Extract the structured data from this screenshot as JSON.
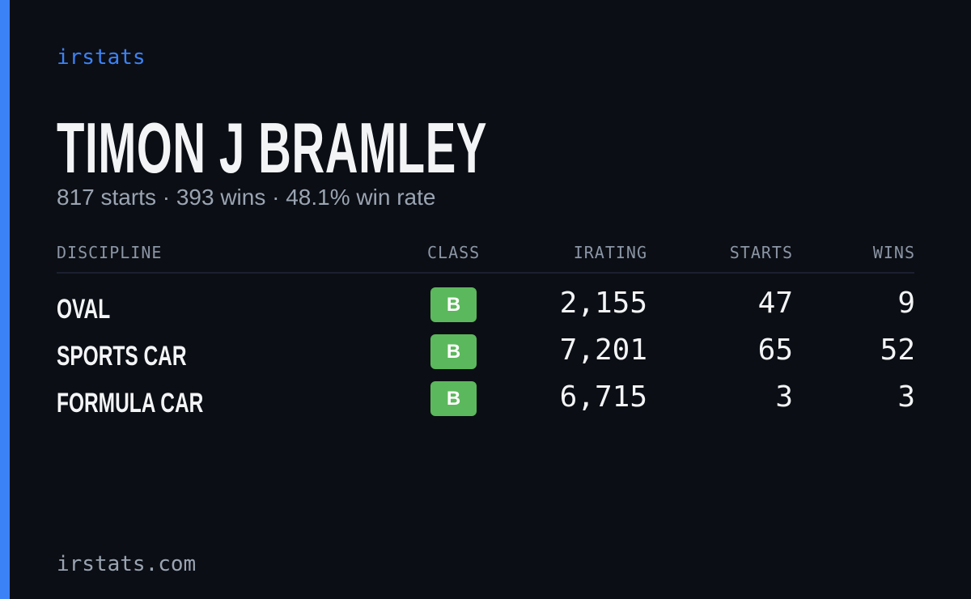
{
  "brand": "irstats",
  "profile": {
    "name": "TIMON J BRAMLEY",
    "summary": "817 starts · 393 wins · 48.1% win rate"
  },
  "table": {
    "columns": [
      "DISCIPLINE",
      "CLASS",
      "IRATING",
      "STARTS",
      "WINS"
    ],
    "rows": [
      [
        "OVAL",
        "B",
        "2,155",
        "47",
        "9"
      ],
      [
        "SPORTS CAR",
        "B",
        "7,201",
        "65",
        "52"
      ],
      [
        "FORMULA CAR",
        "B",
        "6,715",
        "3",
        "3"
      ]
    ]
  },
  "footer": "irstats.com"
}
